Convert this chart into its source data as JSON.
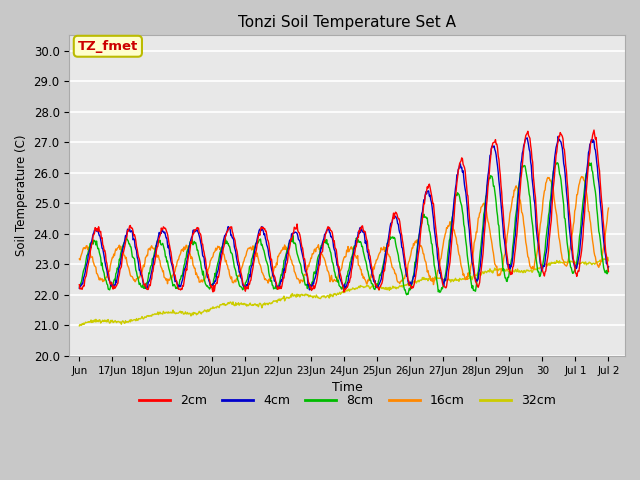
{
  "title": "Tonzi Soil Temperature Set A",
  "xlabel": "Time",
  "ylabel": "Soil Temperature (C)",
  "ylim": [
    20.0,
    30.5
  ],
  "yticks": [
    20.0,
    21.0,
    22.0,
    23.0,
    24.0,
    25.0,
    26.0,
    27.0,
    28.0,
    29.0,
    30.0
  ],
  "plot_bg_color": "#e8e8e8",
  "legend_entries": [
    "2cm",
    "4cm",
    "8cm",
    "16cm",
    "32cm"
  ],
  "line_colors": [
    "#ff0000",
    "#0000cc",
    "#00bb00",
    "#ff8800",
    "#cccc00"
  ],
  "annotation_text": "TZ_fmet",
  "annotation_color": "#cc0000",
  "annotation_bg": "#ffffcc",
  "annotation_border": "#bbbb00",
  "xtick_labels": [
    "Jun",
    "17Jun",
    "18Jun",
    "19Jun",
    "20Jun",
    "21Jun",
    "22Jun",
    "23Jun",
    "24Jun",
    "25Jun",
    "26Jun",
    "27Jun",
    "28Jun",
    "29Jun",
    "30",
    "Jul 1",
    "Jul 2"
  ],
  "xtick_positions": [
    0,
    1,
    2,
    3,
    4,
    5,
    6,
    7,
    8,
    9,
    10,
    11,
    12,
    13,
    14,
    15,
    16
  ]
}
